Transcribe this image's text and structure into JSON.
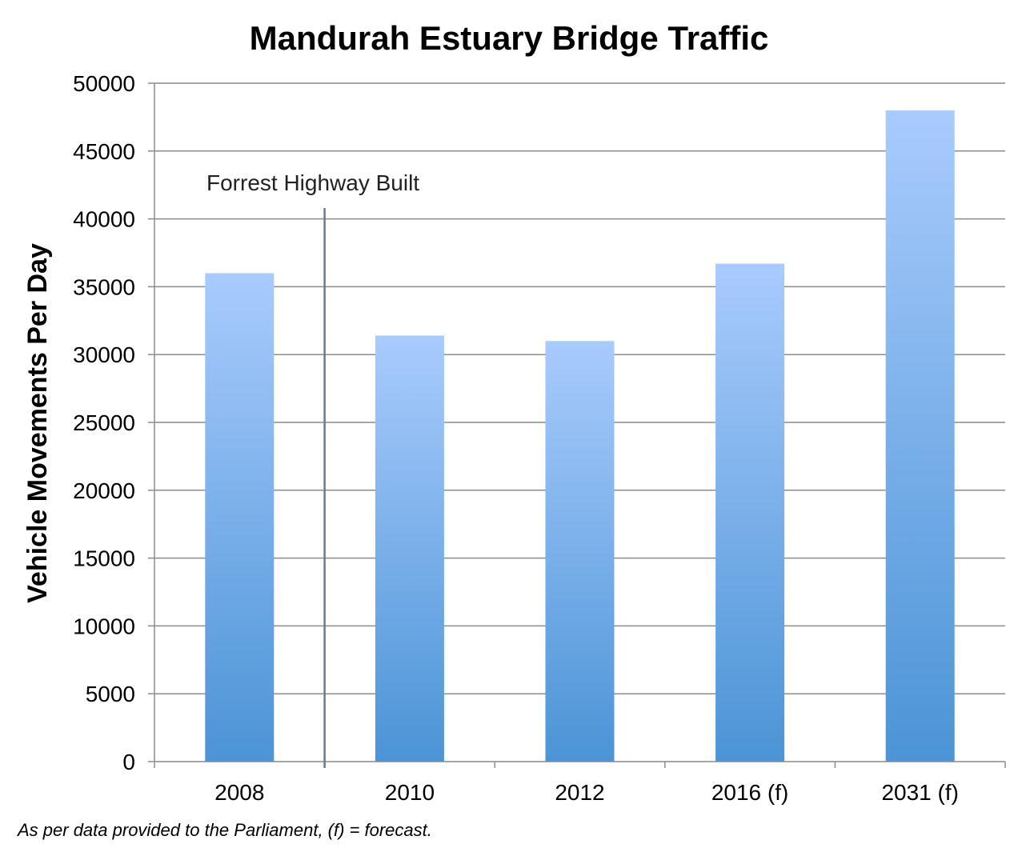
{
  "chart_data": {
    "type": "bar",
    "title": "Mandurah Estuary Bridge Traffic",
    "xlabel": "",
    "ylabel": "Vehicle Movements Per Day",
    "categories": [
      "2008",
      "2010",
      "2012",
      "2016 (f)",
      "2031 (f)"
    ],
    "values": [
      36000,
      31400,
      31000,
      36700,
      48000
    ],
    "ylim": [
      0,
      50000
    ],
    "yticks": [
      0,
      5000,
      10000,
      15000,
      20000,
      25000,
      30000,
      35000,
      40000,
      45000,
      50000
    ],
    "grid": true,
    "legend": "none",
    "annotation": {
      "text": "Forrest Highway Built",
      "between": [
        "2008",
        "2010"
      ]
    },
    "footnote": "As per data provided to the Parliament, (f) = forecast.",
    "colors": {
      "bar_top": "#a9cbfd",
      "bar_bottom": "#4b94d6",
      "grid": "#8c8c8c",
      "marker": "#6d7b86"
    }
  }
}
